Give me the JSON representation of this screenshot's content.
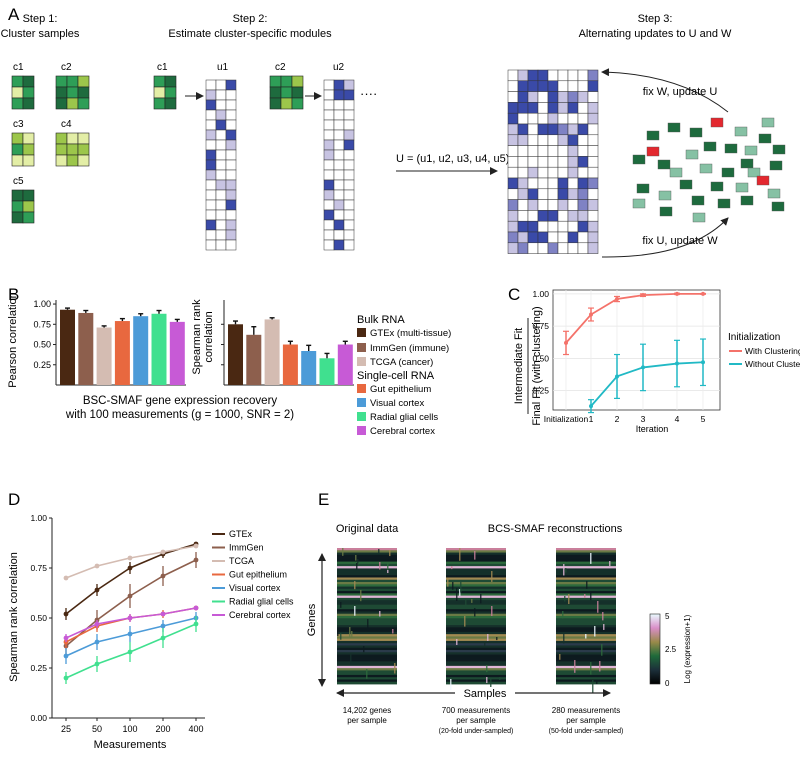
{
  "colors": {
    "dark_green": "#1e6b3e",
    "mid_green": "#2e9e57",
    "light_green": "#9cc64b",
    "pale_green": "#e3eea6",
    "module_dark": "#3a4aa8",
    "module_light": "#c7c3e2",
    "matrix_mid": "#7f82c4",
    "red": "#e3282f",
    "fit_with": "#f4726a",
    "fit_without": "#21b9c5",
    "gtex": "#4a2812",
    "immgen": "#8d5f4d",
    "tcga": "#d4bcb2",
    "gut": "#e8683f",
    "visual": "#4c9bd8",
    "radial": "#40e08f",
    "cerebral": "#c75ad6"
  },
  "panelA": {
    "label": "A",
    "step1_title_1": "Step 1:",
    "step1_title_2": "Cluster samples",
    "step2_title_1": "Step 2:",
    "step2_title_2": "Estimate cluster-specific modules",
    "step3_title_1": "Step 3:",
    "step3_title_2": "Alternating updates to U and W",
    "clusters": [
      "c1",
      "c2",
      "c3",
      "c4",
      "c5"
    ],
    "module_c1": "c1",
    "module_u1": "u1",
    "module_c2": "c2",
    "module_u2": "u2",
    "ellipsis": "····",
    "u_equation": "U = (u1, u2, u3, u4, u5)",
    "fix_w": "fix W, update U",
    "fix_u": "fix U, update W"
  },
  "panelB": {
    "label": "B",
    "ylabel_left": "Pearson correlation",
    "ylabel_right_1": "Spearman rank",
    "ylabel_right_2": "correlation",
    "caption_1": "BSC-SMAF gene expression recovery",
    "caption_2": "with 100 measurements (g = 1000, SNR = 2)",
    "legend_bulk": "Bulk RNA",
    "legend_single": "Single-cell RNA",
    "legend_items": [
      "GTEx (multi-tissue)",
      "ImmGen (immune)",
      "TCGA (cancer)",
      "Gut epithelium",
      "Visual cortex",
      "Radial glial cells",
      "Cerebral cortex"
    ],
    "left_ticks": [
      "0.25",
      "0.50",
      "0.75",
      "1.00"
    ]
  },
  "panelC": {
    "label": "C",
    "ylabel_1": "Intermediate Fit",
    "ylabel_2": "Final Fit (with clustering)",
    "xlabel": "Iteration",
    "legend_title": "Initialization",
    "legend_items": [
      "With Clustering",
      "Without Clustering"
    ],
    "x_ticks": [
      "Initialization",
      "1",
      "2",
      "3",
      "4",
      "5"
    ],
    "y_ticks": [
      "0.25",
      "0.50",
      "0.75",
      "1.00"
    ]
  },
  "panelD": {
    "label": "D",
    "ylabel": "Spearman rank correlation",
    "xlabel": "Measurements",
    "x_ticks": [
      "25",
      "50",
      "100",
      "200",
      "400"
    ],
    "y_ticks": [
      "0.00",
      "0.25",
      "0.50",
      "0.75",
      "1.00"
    ],
    "legend_items": [
      "GTEx",
      "ImmGen",
      "TCGA",
      "Gut epithelium",
      "Visual cortex",
      "Radial glial cells",
      "Cerebral cortex"
    ]
  },
  "panelE": {
    "label": "E",
    "title_original": "Original data",
    "title_recon": "BCS-SMAF reconstructions",
    "genes_label": "Genes",
    "samples_label": "Samples",
    "cap1_1": "14,202 genes",
    "cap1_2": "per sample",
    "cap2_1": "700 measurements",
    "cap2_2": "per sample",
    "cap2_3": "(20-fold under-sampled)",
    "cap3_1": "280 measurements",
    "cap3_2": "per sample",
    "cap3_3": "(50-fold under-sampled)",
    "colorbar_label": "Log (expression+1)",
    "colorbar_ticks": [
      "5",
      "2.5",
      "0"
    ]
  },
  "chart_data": [
    {
      "type": "bar",
      "panel": "B-left",
      "ylabel": "Pearson correlation",
      "ylim": [
        0,
        1.05
      ],
      "categories": [
        "GTEx (multi-tissue)",
        "ImmGen (immune)",
        "TCGA (cancer)",
        "Gut epithelium",
        "Visual cortex",
        "Radial glial cells",
        "Cerebral cortex"
      ],
      "values": [
        0.93,
        0.89,
        0.71,
        0.79,
        0.85,
        0.88,
        0.78
      ],
      "errors": [
        0.02,
        0.03,
        0.02,
        0.03,
        0.03,
        0.04,
        0.03
      ]
    },
    {
      "type": "bar",
      "panel": "B-right",
      "ylabel": "Spearman rank correlation",
      "ylim": [
        0,
        1.05
      ],
      "categories": [
        "GTEx (multi-tissue)",
        "ImmGen (immune)",
        "TCGA (cancer)",
        "Gut epithelium",
        "Visual cortex",
        "Radial glial cells",
        "Cerebral cortex"
      ],
      "values": [
        0.75,
        0.62,
        0.81,
        0.5,
        0.42,
        0.33,
        0.5
      ],
      "errors": [
        0.04,
        0.1,
        0.02,
        0.04,
        0.07,
        0.06,
        0.04
      ]
    },
    {
      "type": "line",
      "panel": "C",
      "x": [
        "Initialization",
        "1",
        "2",
        "3",
        "4",
        "5"
      ],
      "ylim": [
        0.1,
        1.03
      ],
      "series": [
        {
          "name": "With Clustering",
          "values": [
            0.62,
            0.84,
            0.96,
            0.99,
            1.0,
            1.0
          ],
          "err": [
            0.09,
            0.05,
            0.02,
            0.01,
            0.005,
            0.003
          ]
        },
        {
          "name": "Without Clustering",
          "values": [
            null,
            0.13,
            0.36,
            0.43,
            0.46,
            0.47
          ],
          "err": [
            null,
            0.05,
            0.17,
            0.18,
            0.18,
            0.18
          ]
        }
      ],
      "xlabel": "Iteration"
    },
    {
      "type": "line",
      "panel": "D",
      "x": [
        25,
        50,
        100,
        200,
        400
      ],
      "ylim": [
        0,
        1
      ],
      "xlabel": "Measurements",
      "ylabel": "Spearman rank correlation",
      "series": [
        {
          "name": "GTEx",
          "values": [
            0.52,
            0.64,
            0.75,
            0.82,
            0.87
          ],
          "err": [
            0.03,
            0.03,
            0.03,
            0.02,
            0.01
          ]
        },
        {
          "name": "ImmGen",
          "values": [
            0.36,
            0.49,
            0.61,
            0.71,
            0.79
          ],
          "err": [
            0.04,
            0.05,
            0.06,
            0.05,
            0.04
          ]
        },
        {
          "name": "TCGA",
          "values": [
            0.7,
            0.76,
            0.8,
            0.83,
            0.86
          ],
          "err": [
            0.01,
            0.01,
            0.01,
            0.01,
            0.01
          ]
        },
        {
          "name": "Gut epithelium",
          "values": [
            0.38,
            0.46,
            0.5,
            0.52,
            0.55
          ],
          "err": [
            0.03,
            0.03,
            0.02,
            0.02,
            0.01
          ]
        },
        {
          "name": "Visual cortex",
          "values": [
            0.31,
            0.38,
            0.42,
            0.46,
            0.5
          ],
          "err": [
            0.04,
            0.04,
            0.04,
            0.03,
            0.03
          ]
        },
        {
          "name": "Radial glial cells",
          "values": [
            0.2,
            0.27,
            0.33,
            0.4,
            0.47
          ],
          "err": [
            0.03,
            0.04,
            0.05,
            0.05,
            0.04
          ]
        },
        {
          "name": "Cerebral cortex",
          "values": [
            0.4,
            0.47,
            0.5,
            0.52,
            0.55
          ],
          "err": [
            0.02,
            0.02,
            0.02,
            0.01,
            0.01
          ]
        }
      ]
    }
  ]
}
